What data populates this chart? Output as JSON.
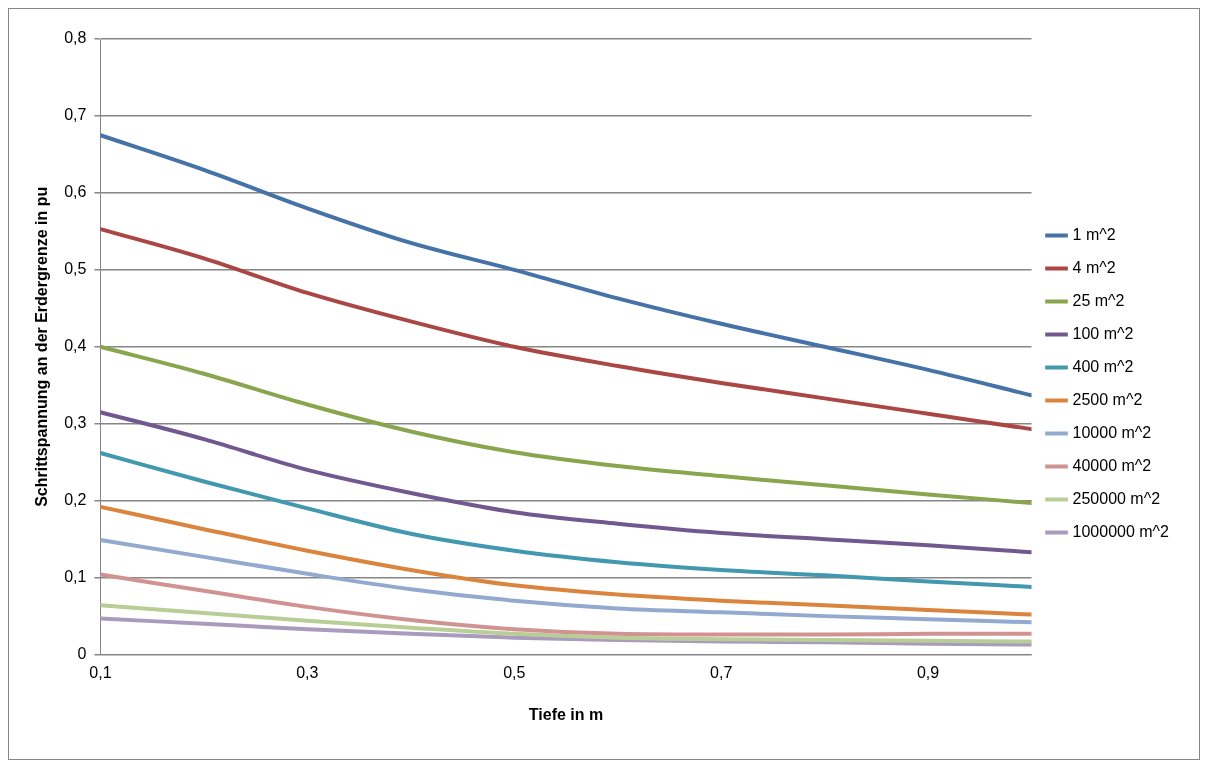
{
  "chart_data": {
    "type": "line",
    "xlabel": "Tiefe in m",
    "ylabel": "Schrittspannung an der Erdergrenze in pu",
    "x": [
      0.1,
      0.2,
      0.3,
      0.4,
      0.5,
      0.6,
      0.7,
      0.8,
      0.9,
      1.0
    ],
    "xlim": [
      0.1,
      1.0
    ],
    "xticks": [
      {
        "value": 0.1,
        "label": "0,1"
      },
      {
        "value": 0.3,
        "label": "0,3"
      },
      {
        "value": 0.5,
        "label": "0,5"
      },
      {
        "value": 0.7,
        "label": "0,7"
      },
      {
        "value": 0.9,
        "label": "0,9"
      }
    ],
    "ylim": [
      0,
      0.8
    ],
    "yticks": [
      {
        "value": 0,
        "label": "0"
      },
      {
        "value": 0.1,
        "label": "0,1"
      },
      {
        "value": 0.2,
        "label": "0,2"
      },
      {
        "value": 0.3,
        "label": "0,3"
      },
      {
        "value": 0.4,
        "label": "0,4"
      },
      {
        "value": 0.5,
        "label": "0,5"
      },
      {
        "value": 0.6,
        "label": "0,6"
      },
      {
        "value": 0.7,
        "label": "0,7"
      },
      {
        "value": 0.8,
        "label": "0,8"
      }
    ],
    "grid": "y",
    "legend": "right",
    "marker": "none",
    "line_style": "solid",
    "series": [
      {
        "name": "1 m^2",
        "color": "#4572a7",
        "values": [
          0.675,
          0.63,
          0.58,
          0.535,
          0.5,
          0.463,
          0.43,
          0.4,
          0.37,
          0.337
        ]
      },
      {
        "name": "4 m^2",
        "color": "#aa4643",
        "values": [
          0.553,
          0.515,
          0.47,
          0.433,
          0.4,
          0.375,
          0.353,
          0.333,
          0.313,
          0.293
        ]
      },
      {
        "name": "25 m^2",
        "color": "#89a54e",
        "values": [
          0.4,
          0.365,
          0.325,
          0.29,
          0.263,
          0.245,
          0.232,
          0.22,
          0.208,
          0.197
        ]
      },
      {
        "name": "100 m^2",
        "color": "#71588f",
        "values": [
          0.315,
          0.28,
          0.24,
          0.21,
          0.185,
          0.17,
          0.158,
          0.15,
          0.142,
          0.133
        ]
      },
      {
        "name": "400 m^2",
        "color": "#4198af",
        "values": [
          0.262,
          0.225,
          0.19,
          0.157,
          0.135,
          0.12,
          0.11,
          0.103,
          0.095,
          0.088
        ]
      },
      {
        "name": "2500 m^2",
        "color": "#db843d",
        "values": [
          0.192,
          0.163,
          0.135,
          0.11,
          0.09,
          0.078,
          0.07,
          0.064,
          0.058,
          0.052
        ]
      },
      {
        "name": "10000 m^2",
        "color": "#93a9cf",
        "values": [
          0.149,
          0.127,
          0.105,
          0.085,
          0.07,
          0.06,
          0.055,
          0.05,
          0.046,
          0.042
        ]
      },
      {
        "name": "40000 m^2",
        "color": "#d19392",
        "values": [
          0.104,
          0.083,
          0.062,
          0.045,
          0.033,
          0.027,
          0.026,
          0.026,
          0.027,
          0.027
        ]
      },
      {
        "name": "250000 m^2",
        "color": "#b9cd96",
        "values": [
          0.064,
          0.054,
          0.044,
          0.035,
          0.027,
          0.022,
          0.02,
          0.019,
          0.018,
          0.017
        ]
      },
      {
        "name": "1000000 m^2",
        "color": "#a99bbd",
        "values": [
          0.047,
          0.04,
          0.033,
          0.027,
          0.022,
          0.019,
          0.017,
          0.016,
          0.014,
          0.013
        ]
      }
    ]
  }
}
